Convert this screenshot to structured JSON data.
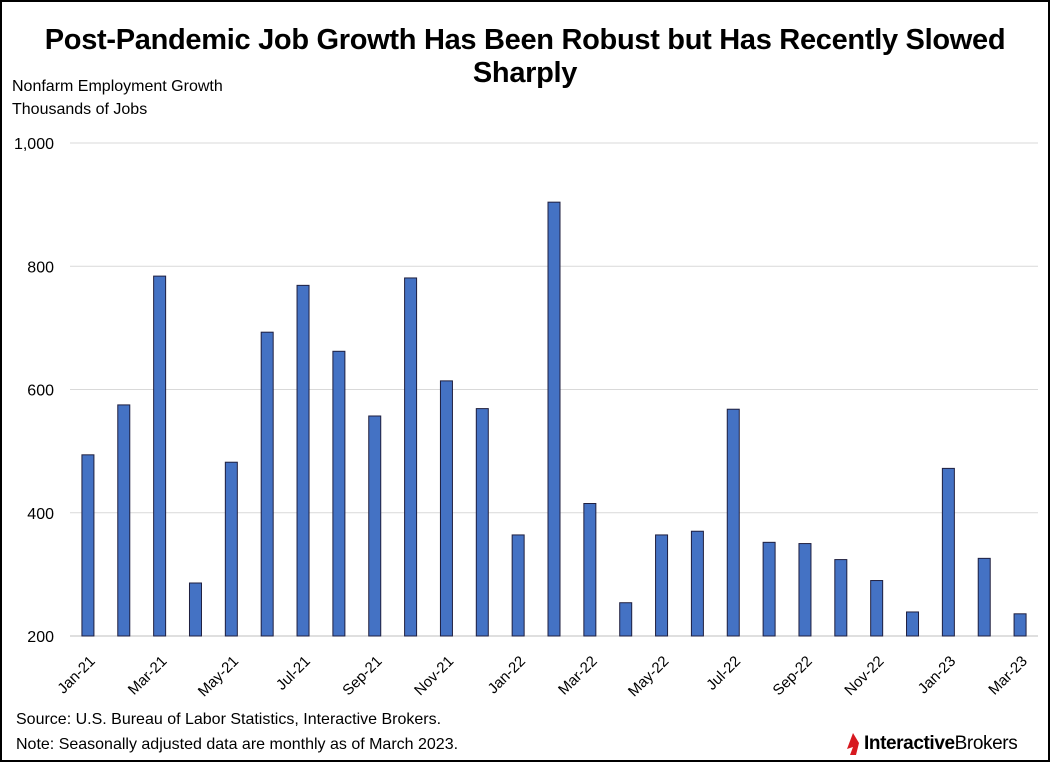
{
  "title": "Post-Pandemic Job Growth Has Been Robust but Has Recently Slowed Sharply",
  "subtitle_line1": "Nonfarm Employment Growth",
  "subtitle_line2": "Thousands of Jobs",
  "source": "Source: U.S. Bureau of Labor Statistics, Interactive Brokers.",
  "note": "Note: Seasonally adjusted data are monthly as of March 2023.",
  "logo": {
    "part1": "Interactive",
    "part2": "Brokers",
    "accent_color": "#d71920"
  },
  "chart_data": {
    "type": "bar",
    "categories": [
      "Jan-21",
      "Feb-21",
      "Mar-21",
      "Apr-21",
      "May-21",
      "Jun-21",
      "Jul-21",
      "Aug-21",
      "Sep-21",
      "Oct-21",
      "Nov-21",
      "Dec-21",
      "Jan-22",
      "Feb-22",
      "Mar-22",
      "Apr-22",
      "May-22",
      "Jun-22",
      "Jul-22",
      "Aug-22",
      "Sep-22",
      "Oct-22",
      "Nov-22",
      "Dec-22",
      "Jan-23",
      "Feb-23",
      "Mar-23"
    ],
    "tick_labels": [
      "Jan-21",
      "Mar-21",
      "May-21",
      "Jul-21",
      "Sep-21",
      "Nov-21",
      "Jan-22",
      "Mar-22",
      "May-22",
      "Jul-22",
      "Sep-22",
      "Nov-22",
      "Jan-23",
      "Mar-23"
    ],
    "values": [
      494,
      575,
      784,
      286,
      482,
      693,
      769,
      662,
      557,
      781,
      614,
      569,
      364,
      904,
      415,
      254,
      364,
      370,
      568,
      352,
      350,
      324,
      290,
      239,
      472,
      326,
      236
    ],
    "ylim": [
      200,
      1000
    ],
    "yticks": [
      200,
      400,
      600,
      800,
      1000
    ],
    "ytick_labels": [
      "200",
      "400",
      "600",
      "800",
      "1,000"
    ],
    "bar_color": "#4472c4",
    "bar_edge_color": "#1f1f3f",
    "grid": true,
    "legend": "none"
  }
}
